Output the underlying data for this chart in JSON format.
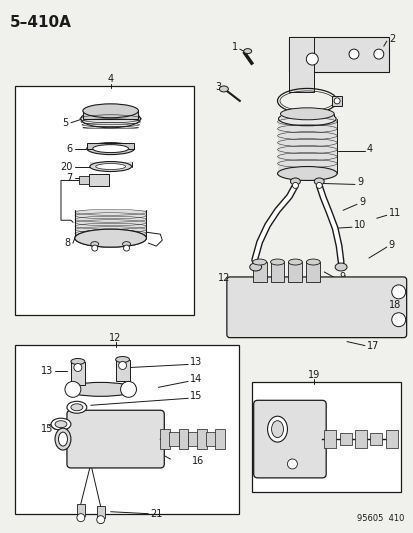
{
  "title": "5–410A",
  "bg_color": "#f0f0ec",
  "line_color": "#1a1a1a",
  "footer": "95605  410",
  "figsize": [
    4.14,
    5.33
  ],
  "dpi": 100
}
